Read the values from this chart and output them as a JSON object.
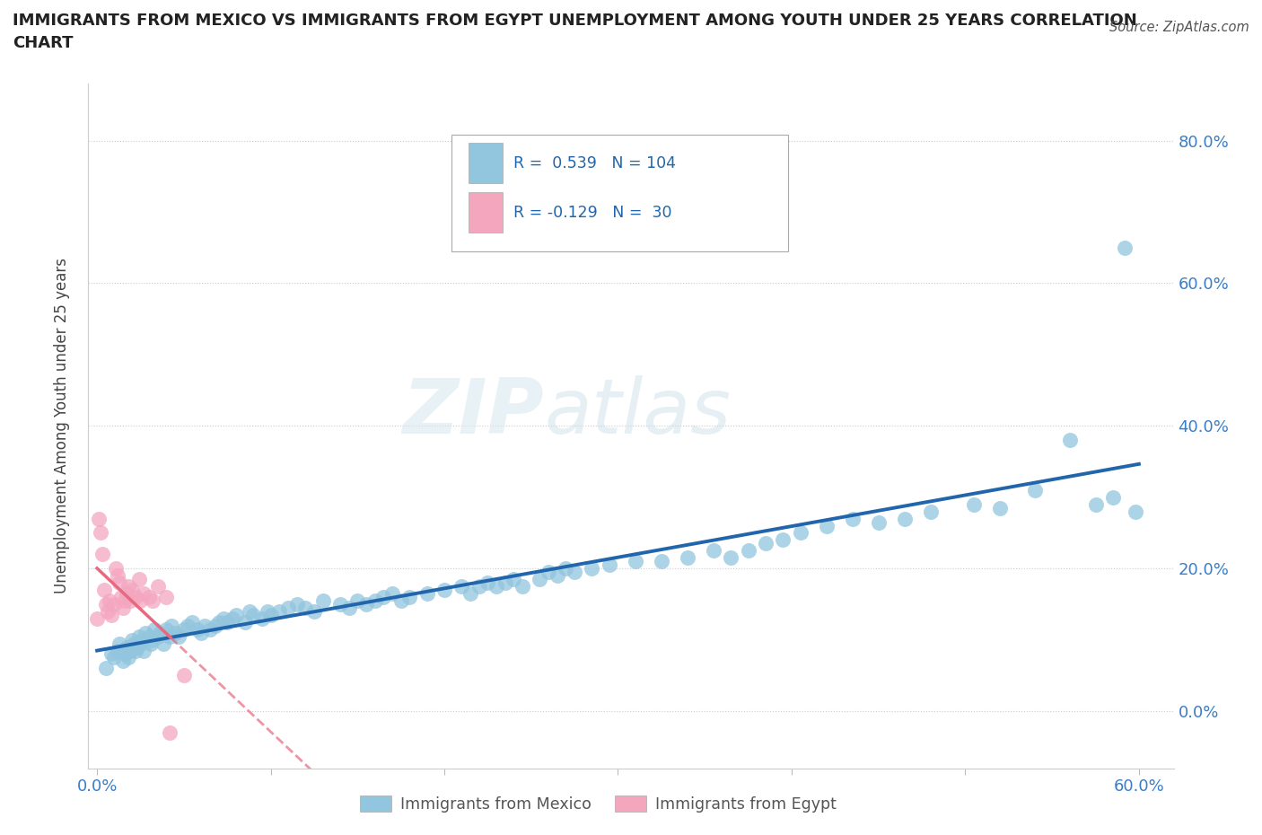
{
  "title_line1": "IMMIGRANTS FROM MEXICO VS IMMIGRANTS FROM EGYPT UNEMPLOYMENT AMONG YOUTH UNDER 25 YEARS CORRELATION",
  "title_line2": "CHART",
  "source": "Source: ZipAtlas.com",
  "ylabel": "Unemployment Among Youth under 25 years",
  "xlim": [
    -0.005,
    0.62
  ],
  "ylim": [
    -0.08,
    0.88
  ],
  "xticks": [
    0.0,
    0.1,
    0.2,
    0.3,
    0.4,
    0.5,
    0.6
  ],
  "yticks": [
    0.0,
    0.2,
    0.4,
    0.6,
    0.8
  ],
  "xtick_labels": [
    "0.0%",
    "",
    "",
    "",
    "",
    "",
    "60.0%"
  ],
  "ytick_labels_right": [
    "0.0%",
    "20.0%",
    "40.0%",
    "60.0%",
    "80.0%"
  ],
  "mexico_color": "#92c5de",
  "egypt_color": "#f4a6bf",
  "mexico_line_color": "#2166ac",
  "egypt_line_color": "#e8687f",
  "R_mexico": 0.539,
  "N_mexico": 104,
  "R_egypt": -0.129,
  "N_egypt": 30,
  "watermark_ZIP": "ZIP",
  "watermark_atlas": "atlas",
  "mexico_scatter_x": [
    0.005,
    0.008,
    0.01,
    0.012,
    0.013,
    0.015,
    0.016,
    0.017,
    0.018,
    0.019,
    0.02,
    0.021,
    0.022,
    0.023,
    0.024,
    0.025,
    0.026,
    0.027,
    0.028,
    0.03,
    0.031,
    0.032,
    0.033,
    0.035,
    0.036,
    0.038,
    0.04,
    0.042,
    0.043,
    0.045,
    0.047,
    0.05,
    0.052,
    0.055,
    0.058,
    0.06,
    0.062,
    0.065,
    0.068,
    0.07,
    0.073,
    0.075,
    0.078,
    0.08,
    0.085,
    0.088,
    0.09,
    0.095,
    0.098,
    0.1,
    0.105,
    0.11,
    0.115,
    0.12,
    0.125,
    0.13,
    0.14,
    0.145,
    0.15,
    0.155,
    0.16,
    0.165,
    0.17,
    0.175,
    0.18,
    0.19,
    0.2,
    0.21,
    0.215,
    0.22,
    0.225,
    0.23,
    0.235,
    0.24,
    0.245,
    0.255,
    0.26,
    0.265,
    0.27,
    0.275,
    0.285,
    0.295,
    0.31,
    0.325,
    0.34,
    0.355,
    0.365,
    0.375,
    0.385,
    0.395,
    0.405,
    0.42,
    0.435,
    0.45,
    0.465,
    0.48,
    0.505,
    0.52,
    0.54,
    0.56,
    0.575,
    0.585,
    0.592,
    0.598
  ],
  "mexico_scatter_y": [
    0.06,
    0.08,
    0.075,
    0.085,
    0.095,
    0.07,
    0.08,
    0.09,
    0.075,
    0.085,
    0.1,
    0.095,
    0.085,
    0.09,
    0.105,
    0.095,
    0.1,
    0.085,
    0.11,
    0.105,
    0.095,
    0.1,
    0.115,
    0.105,
    0.11,
    0.095,
    0.115,
    0.105,
    0.12,
    0.11,
    0.105,
    0.115,
    0.12,
    0.125,
    0.115,
    0.11,
    0.12,
    0.115,
    0.12,
    0.125,
    0.13,
    0.125,
    0.13,
    0.135,
    0.125,
    0.14,
    0.135,
    0.13,
    0.14,
    0.135,
    0.14,
    0.145,
    0.15,
    0.145,
    0.14,
    0.155,
    0.15,
    0.145,
    0.155,
    0.15,
    0.155,
    0.16,
    0.165,
    0.155,
    0.16,
    0.165,
    0.17,
    0.175,
    0.165,
    0.175,
    0.18,
    0.175,
    0.18,
    0.185,
    0.175,
    0.185,
    0.195,
    0.19,
    0.2,
    0.195,
    0.2,
    0.205,
    0.21,
    0.21,
    0.215,
    0.225,
    0.215,
    0.225,
    0.235,
    0.24,
    0.25,
    0.26,
    0.27,
    0.265,
    0.27,
    0.28,
    0.29,
    0.285,
    0.31,
    0.38,
    0.29,
    0.3,
    0.65,
    0.28
  ],
  "egypt_scatter_x": [
    0.0,
    0.001,
    0.002,
    0.003,
    0.004,
    0.005,
    0.006,
    0.007,
    0.008,
    0.01,
    0.011,
    0.012,
    0.013,
    0.014,
    0.015,
    0.016,
    0.017,
    0.018,
    0.019,
    0.02,
    0.022,
    0.024,
    0.025,
    0.027,
    0.03,
    0.032,
    0.035,
    0.04,
    0.042,
    0.05
  ],
  "egypt_scatter_y": [
    0.13,
    0.27,
    0.25,
    0.22,
    0.17,
    0.15,
    0.14,
    0.155,
    0.135,
    0.15,
    0.2,
    0.19,
    0.18,
    0.16,
    0.145,
    0.155,
    0.165,
    0.175,
    0.155,
    0.17,
    0.16,
    0.185,
    0.155,
    0.165,
    0.16,
    0.155,
    0.175,
    0.16,
    -0.03,
    0.05
  ],
  "egypt_line_x_solid_end": 0.055,
  "egypt_line_x_dash_end": 0.18
}
